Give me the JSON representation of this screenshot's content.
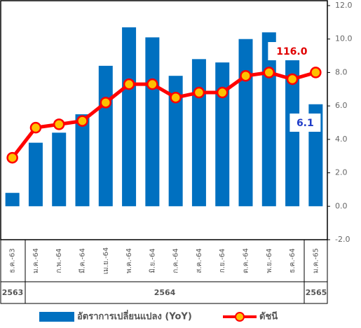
{
  "chart_data": {
    "type": "bar_line",
    "categories": [
      "ธ.ค.-63",
      "ม.ค.-64",
      "ก.พ.-64",
      "มี.ค.-64",
      "เม.ย.-64",
      "พ.ค.-64",
      "มิ.ย.-64",
      "ก.ค.-64",
      "ส.ค.-64",
      "ก.ย.-64",
      "ต.ค.-64",
      "พ.ย.-64",
      "ธ.ค.-64",
      "ม.ค.-65"
    ],
    "years": [
      "2563",
      "2564",
      "2565"
    ],
    "series": [
      {
        "name": "อัตราการเปลี่ยนแปลง (YoY)",
        "type": "bar",
        "color": "#0070c0",
        "values": [
          0.8,
          3.8,
          4.4,
          5.5,
          8.4,
          10.7,
          10.1,
          7.8,
          8.8,
          8.6,
          10.0,
          10.4,
          8.8,
          6.1
        ],
        "value_labels": [
          null,
          null,
          null,
          null,
          null,
          null,
          null,
          null,
          null,
          null,
          null,
          null,
          null,
          "6.1"
        ]
      },
      {
        "name": "ดัชนี",
        "type": "line",
        "axis": "y2",
        "color": "#ff0000",
        "marker_color": "#ffc000",
        "values": [
          110.9,
          112.7,
          112.9,
          113.1,
          114.2,
          115.3,
          115.3,
          114.5,
          114.8,
          114.8,
          115.8,
          116.0,
          115.6,
          116.0
        ],
        "value_labels": [
          null,
          null,
          null,
          null,
          null,
          null,
          null,
          null,
          null,
          null,
          null,
          null,
          null,
          "116.0"
        ]
      }
    ],
    "ylim": [
      -2,
      12
    ],
    "yticks": [
      {
        "value": -2,
        "label": "-2.0"
      },
      {
        "value": 0,
        "label": "0.0"
      },
      {
        "value": 2,
        "label": "2.0"
      },
      {
        "value": 4,
        "label": "4.0"
      },
      {
        "value": 6,
        "label": "6.0"
      },
      {
        "value": 8,
        "label": "8.0"
      },
      {
        "value": 10,
        "label": "10.0"
      },
      {
        "value": 12,
        "label": "12.0"
      }
    ],
    "y2lim": [
      106,
      120
    ]
  }
}
